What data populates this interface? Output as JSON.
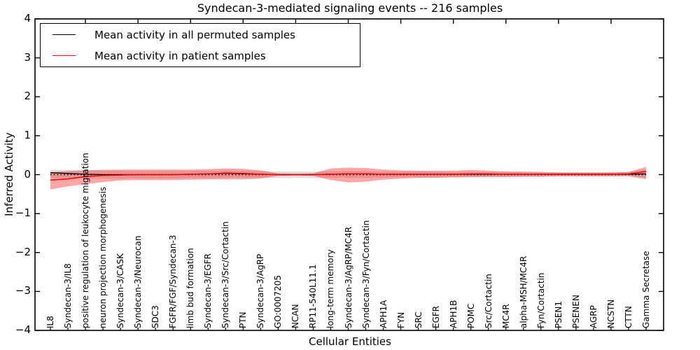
{
  "chart_data": {
    "type": "line",
    "title": "Syndecan-3-mediated signaling events -- 216 samples",
    "xlabel": "Cellular Entities",
    "ylabel": "Inferred Activity",
    "ylim": [
      -4,
      4
    ],
    "ytick_values": [
      4,
      3,
      2,
      1,
      0,
      -1,
      -2,
      -3,
      -4
    ],
    "ytick_labels": [
      "4",
      "3",
      "2",
      "1",
      "0",
      "−1",
      "−2",
      "−3",
      "−4"
    ],
    "grid": false,
    "zero_line": {
      "style": "dotted",
      "color": "#000000",
      "y": 0
    },
    "legend": {
      "position": "upper left",
      "entries": [
        {
          "label": "Mean activity in all permuted samples",
          "color": "#000000"
        },
        {
          "label": "Mean activity in patient samples",
          "color": "#ff0000"
        }
      ]
    },
    "categories": [
      "IL8",
      "Syndecan-3/IL8",
      "positive regulation of leukocyte migration",
      "neuron projection morphogenesis",
      "Syndecan-3/CASK",
      "Syndecan-3/Neurocan",
      "SDC3",
      "FGFR/FGF/Syndecan-3",
      "limb bud formation",
      "Syndecan-3/EGFR",
      "Syndecan-3/Src/Cortactin",
      "PTN",
      "Syndecan-3/AgRP",
      "GO:0007205",
      "NCAN",
      "RP11-540L11.1",
      "long-term memory",
      "Syndecan-3/AgRP/MC4R",
      "Syndecan-3/Fyn/Cortactin",
      "APH1A",
      "FYN",
      "SRC",
      "EGFR",
      "APH1B",
      "POMC",
      "Src/Cortactin",
      "MC4R",
      "alpha-MSH/MC4R",
      "Fyn/Cortactin",
      "PSEN1",
      "PSENEN",
      "AGRP",
      "NCSTN",
      "CTTN",
      "Gamma Secretase"
    ],
    "series": [
      {
        "name": "Permuted samples band",
        "type": "band",
        "color": "#000000",
        "opacity": 0.13,
        "upper": [
          0.12,
          0.12,
          0.12,
          0.11,
          0.1,
          0.1,
          0.1,
          0.1,
          0.1,
          0.1,
          0.11,
          0.1,
          0.09,
          0.08,
          0.08,
          0.08,
          0.09,
          0.09,
          0.09,
          0.08,
          0.08,
          0.08,
          0.08,
          0.07,
          0.07,
          0.07,
          0.07,
          0.06,
          0.06,
          0.06,
          0.06,
          0.06,
          0.06,
          0.07,
          0.14
        ],
        "lower": [
          -0.08,
          -0.09,
          -0.1,
          -0.1,
          -0.1,
          -0.1,
          -0.1,
          -0.1,
          -0.09,
          -0.09,
          -0.08,
          -0.08,
          -0.08,
          -0.08,
          -0.08,
          -0.08,
          -0.08,
          -0.08,
          -0.08,
          -0.08,
          -0.07,
          -0.07,
          -0.07,
          -0.07,
          -0.07,
          -0.06,
          -0.06,
          -0.06,
          -0.06,
          -0.05,
          -0.05,
          -0.05,
          -0.05,
          -0.06,
          -0.12
        ]
      },
      {
        "name": "Patient samples band",
        "type": "band",
        "color": "#ff0000",
        "opacity": 0.35,
        "upper": [
          0.06,
          0.09,
          0.11,
          0.12,
          0.13,
          0.13,
          0.13,
          0.13,
          0.13,
          0.14,
          0.16,
          0.15,
          0.11,
          0.03,
          0.02,
          0.03,
          0.16,
          0.18,
          0.17,
          0.13,
          0.11,
          0.1,
          0.1,
          0.1,
          0.12,
          0.1,
          0.08,
          0.08,
          0.07,
          0.06,
          0.06,
          0.06,
          0.06,
          0.07,
          0.2
        ],
        "lower": [
          -0.38,
          -0.3,
          -0.24,
          -0.19,
          -0.15,
          -0.14,
          -0.14,
          -0.14,
          -0.13,
          -0.12,
          -0.12,
          -0.12,
          -0.1,
          -0.03,
          -0.02,
          -0.03,
          -0.14,
          -0.2,
          -0.18,
          -0.13,
          -0.1,
          -0.08,
          -0.08,
          -0.07,
          -0.06,
          -0.06,
          -0.06,
          -0.05,
          -0.05,
          -0.04,
          -0.04,
          -0.04,
          -0.04,
          -0.03,
          -0.1
        ]
      },
      {
        "name": "Mean activity in all permuted samples",
        "type": "line",
        "color": "#000000",
        "values": [
          0.05,
          0.03,
          0.01,
          0.0,
          0.0,
          0.0,
          0.0,
          0.0,
          0.01,
          0.02,
          0.04,
          0.03,
          0.01,
          0.0,
          0.0,
          0.0,
          0.01,
          0.02,
          0.02,
          0.01,
          0.01,
          0.01,
          0.01,
          0.01,
          0.01,
          0.01,
          0.01,
          0.01,
          0.01,
          0.01,
          0.01,
          0.01,
          0.01,
          0.01,
          0.02
        ]
      },
      {
        "name": "Mean activity in patient samples",
        "type": "line",
        "color": "#ff0000",
        "values": [
          -0.14,
          -0.11,
          -0.05,
          -0.02,
          -0.01,
          0.0,
          0.0,
          0.0,
          0.01,
          0.02,
          0.03,
          0.02,
          0.01,
          0.0,
          0.0,
          0.0,
          0.01,
          0.02,
          0.02,
          0.01,
          0.01,
          0.01,
          0.01,
          0.01,
          0.02,
          0.02,
          0.01,
          0.01,
          0.01,
          0.01,
          0.01,
          0.01,
          0.01,
          0.02,
          0.08
        ]
      }
    ]
  }
}
